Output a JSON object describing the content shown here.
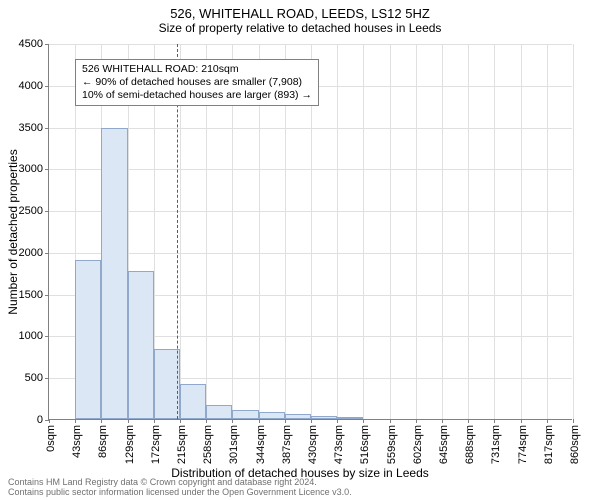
{
  "title_main": "526, WHITEHALL ROAD, LEEDS, LS12 5HZ",
  "title_sub": "Size of property relative to detached houses in Leeds",
  "xlabel": "Distribution of detached houses by size in Leeds",
  "ylabel": "Number of detached properties",
  "footer_line1": "Contains HM Land Registry data © Crown copyright and database right 2024.",
  "footer_line2": "Contains public sector information licensed under the Open Government Licence v3.0.",
  "chart": {
    "type": "histogram",
    "background_color": "#ffffff",
    "grid_color": "#e0e0e0",
    "axis_color": "#808080",
    "bar_fill": "#dce7f5",
    "bar_stroke": "#8fa8cc",
    "reference_line_color": "#c23030",
    "ylim": [
      0,
      4500
    ],
    "ytick_step": 500,
    "xtick_labels": [
      "0sqm",
      "43sqm",
      "86sqm",
      "129sqm",
      "172sqm",
      "215sqm",
      "258sqm",
      "301sqm",
      "344sqm",
      "387sqm",
      "430sqm",
      "473sqm",
      "516sqm",
      "559sqm",
      "602sqm",
      "645sqm",
      "688sqm",
      "731sqm",
      "774sqm",
      "817sqm",
      "860sqm"
    ],
    "values": [
      0,
      1900,
      3480,
      1770,
      840,
      420,
      170,
      110,
      80,
      55,
      40,
      25,
      0,
      0,
      0,
      0,
      0,
      0,
      0,
      0
    ],
    "reference_value_x_index": 4.88,
    "title_fontsize": 13,
    "subtitle_fontsize": 12,
    "label_fontsize": 12,
    "tick_fontsize": 11
  },
  "annotation": {
    "line1": "526 WHITEHALL ROAD: 210sqm",
    "line2": "← 90% of detached houses are smaller (7,908)",
    "line3": "10% of semi-detached houses are larger (893) →"
  }
}
